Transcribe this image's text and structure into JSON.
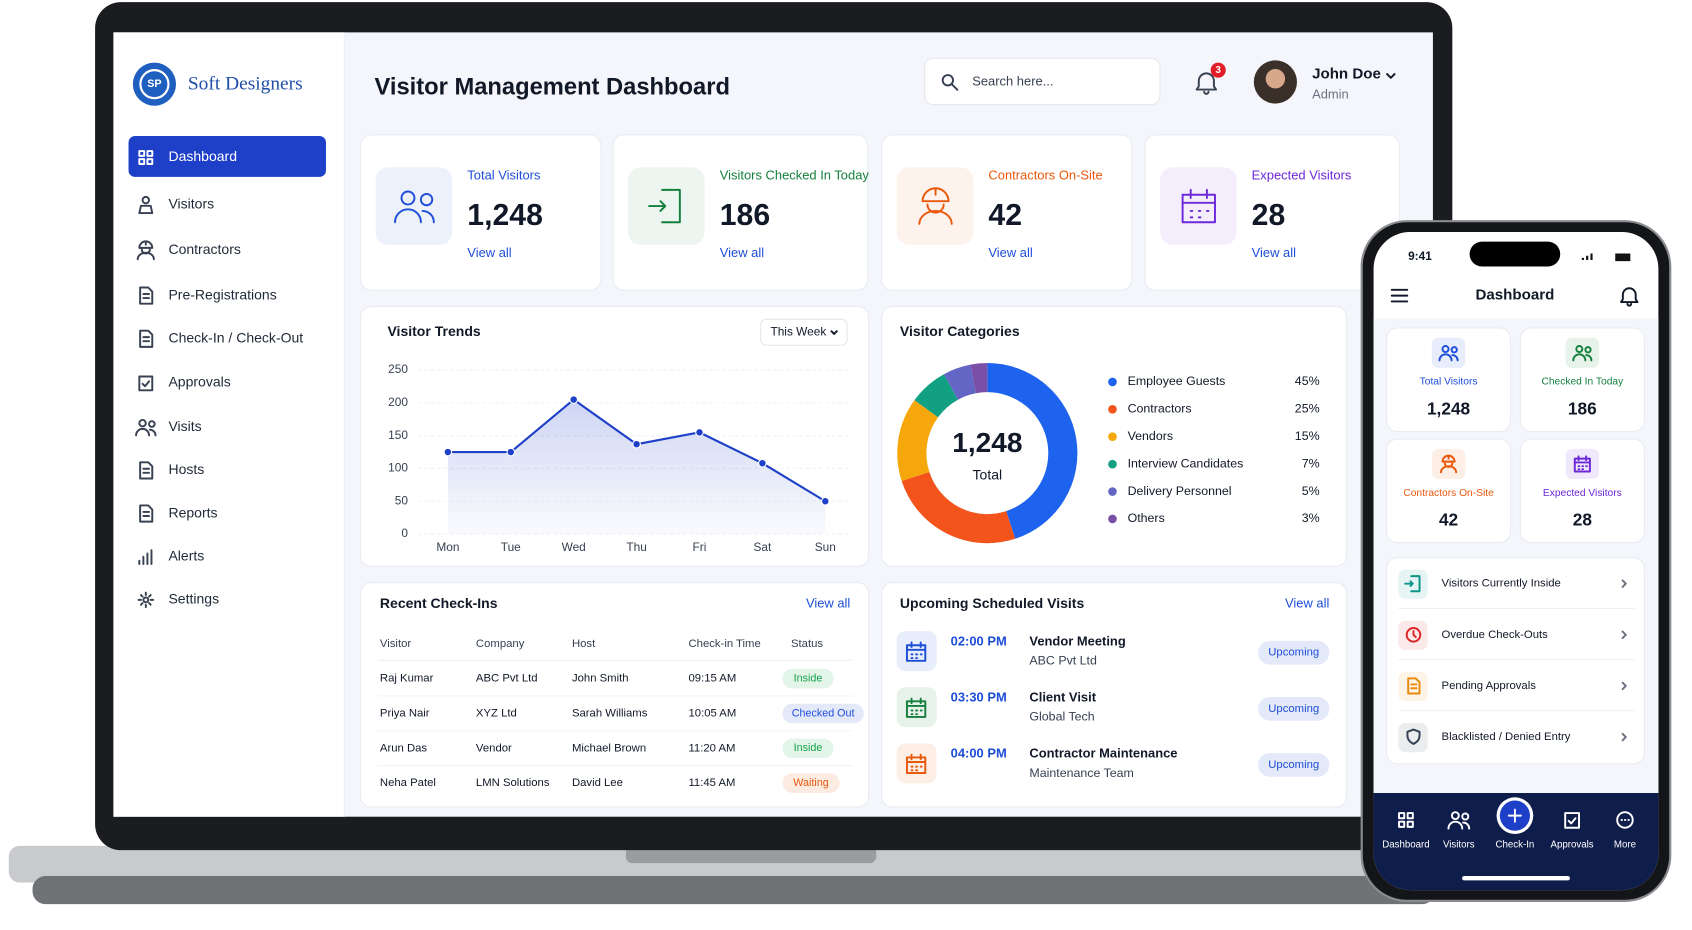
{
  "brand": "Soft Designers",
  "logo": "SP",
  "sidebar": [
    "Dashboard",
    "Visitors",
    "Contractors",
    "Pre-Registrations",
    "Check-In / Check-Out",
    "Approvals",
    "Visits",
    "Hosts",
    "Reports",
    "Alerts",
    "Settings"
  ],
  "header": {
    "title": "Visitor Management Dashboard",
    "search": "Search here...",
    "notifications": "3",
    "user": "John Doe",
    "role": "Admin"
  },
  "stats": [
    {
      "label": "Total Visitors",
      "value": "1,248",
      "link": "View all",
      "color": "#1d4ed8"
    },
    {
      "label": "Visitors Checked In Today",
      "value": "186",
      "link": "View all",
      "color": "#15803d"
    },
    {
      "label": "Contractors On-Site",
      "value": "42",
      "link": "View all",
      "color": "#ea580c"
    },
    {
      "label": "Expected Visitors",
      "value": "28",
      "link": "View all",
      "color": "#6d28d9"
    }
  ],
  "visitor_trends": {
    "title": "Visitor Trends",
    "filter": "This Week",
    "categories": [
      "Mon",
      "Tue",
      "Wed",
      "Thu",
      "Fri",
      "Sat",
      "Sun"
    ],
    "values": [
      125,
      125,
      205,
      137,
      155,
      108,
      50
    ],
    "ylim": [
      0,
      250
    ],
    "yticks": [
      0,
      50,
      100,
      150,
      200,
      250
    ],
    "color": "#1e40c8",
    "grid": true
  },
  "visitor_categories": {
    "title": "Visitor Categories",
    "total": "1,248",
    "total_label": "Total",
    "categories": [
      "Employee Guests",
      "Contractors",
      "Vendors",
      "Interview Candidates",
      "Delivery Personnel",
      "Others"
    ],
    "values": [
      45,
      25,
      15,
      7,
      5,
      3
    ],
    "value_labels": [
      "45%",
      "25%",
      "15%",
      "7%",
      "5%",
      "3%"
    ],
    "colors": [
      "#1d63ed",
      "#f2541b",
      "#f5a70b",
      "#12a083",
      "#6366c4",
      "#7a4fa8"
    ]
  },
  "recent_checkins": {
    "title": "Recent Check-Ins",
    "link": "View all",
    "columns": [
      "Visitor",
      "Company",
      "Host",
      "Check-in Time",
      "Status"
    ],
    "rows": [
      [
        "Raj Kumar",
        "ABC Pvt Ltd",
        "John Smith",
        "09:15 AM",
        "Inside"
      ],
      [
        "Priya Nair",
        "XYZ Ltd",
        "Sarah Williams",
        "10:05 AM",
        "Checked Out"
      ],
      [
        "Arun Das",
        "Vendor",
        "Michael Brown",
        "11:20 AM",
        "Inside"
      ],
      [
        "Neha Patel",
        "LMN Solutions",
        "David Lee",
        "11:45 AM",
        "Waiting"
      ]
    ],
    "status_colors": [
      "#16a34a",
      "#1d4ed8",
      "#16a34a",
      "#ea580c"
    ]
  },
  "upcoming_visits": {
    "title": "Upcoming Scheduled Visits",
    "link": "View all",
    "items": [
      {
        "time": "02:00 PM",
        "title": "Vendor Meeting",
        "subtitle": "ABC Pvt Ltd",
        "status": "Upcoming",
        "color": "#1d4ed8"
      },
      {
        "time": "03:30 PM",
        "title": "Client Visit",
        "subtitle": "Global Tech",
        "status": "Upcoming",
        "color": "#15803d"
      },
      {
        "time": "04:00 PM",
        "title": "Contractor Maintenance",
        "subtitle": "Maintenance Team",
        "status": "Upcoming",
        "color": "#ea580c"
      }
    ]
  },
  "mobile": {
    "time": "9:41",
    "title": "Dashboard",
    "stats": [
      {
        "label": "Total Visitors",
        "value": "1,248",
        "color": "#1d4ed8"
      },
      {
        "label": "Checked In Today",
        "value": "186",
        "color": "#15803d"
      },
      {
        "label": "Contractors On-Site",
        "value": "42",
        "color": "#ea580c"
      },
      {
        "label": "Expected Visitors",
        "value": "28",
        "color": "#6d28d9"
      }
    ],
    "menu": [
      {
        "label": "Visitors Currently Inside",
        "color": "#0e9488"
      },
      {
        "label": "Overdue Check-Outs",
        "color": "#dc2626"
      },
      {
        "label": "Pending Approvals",
        "color": "#ea8a0c"
      },
      {
        "label": "Blacklisted / Denied Entry",
        "color": "#334155"
      }
    ],
    "nav": [
      "Dashboard",
      "Visitors",
      "Check-In",
      "Approvals",
      "More"
    ]
  }
}
